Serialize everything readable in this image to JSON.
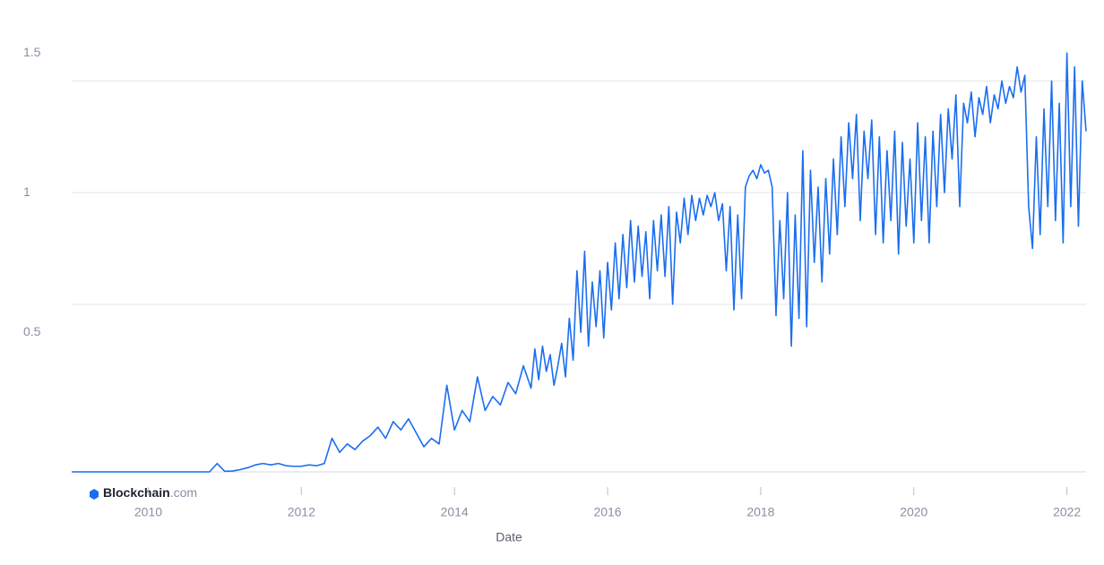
{
  "chart_data": {
    "type": "line",
    "x_label": "Date",
    "watermark": [
      "Blockchain",
      ".com"
    ],
    "xlim": [
      2009,
      2022.25
    ],
    "xticks": [
      2010,
      2012,
      2014,
      2016,
      2018,
      2020,
      2022
    ],
    "ylim": [
      0,
      1.6
    ],
    "yticks": [
      0.5,
      1,
      1.5
    ],
    "ygrid": [
      0.6,
      1,
      1.4
    ],
    "series": [
      {
        "color": "#1a6ef0",
        "x": [
          2009.0,
          2009.1,
          2009.2,
          2009.3,
          2009.4,
          2009.5,
          2009.6,
          2009.7,
          2009.8,
          2009.9,
          2010.0,
          2010.1,
          2010.2,
          2010.3,
          2010.4,
          2010.5,
          2010.6,
          2010.7,
          2010.8,
          2010.9,
          2011.0,
          2011.1,
          2011.2,
          2011.3,
          2011.4,
          2011.5,
          2011.6,
          2011.7,
          2011.8,
          2011.9,
          2012.0,
          2012.1,
          2012.2,
          2012.3,
          2012.4,
          2012.5,
          2012.6,
          2012.7,
          2012.8,
          2012.9,
          2013.0,
          2013.1,
          2013.2,
          2013.3,
          2013.4,
          2013.5,
          2013.6,
          2013.7,
          2013.8,
          2013.9,
          2014.0,
          2014.1,
          2014.2,
          2014.3,
          2014.4,
          2014.5,
          2014.6,
          2014.7,
          2014.8,
          2014.9,
          2015.0,
          2015.05,
          2015.1,
          2015.15,
          2015.2,
          2015.25,
          2015.3,
          2015.35,
          2015.4,
          2015.45,
          2015.5,
          2015.55,
          2015.6,
          2015.65,
          2015.7,
          2015.75,
          2015.8,
          2015.85,
          2015.9,
          2015.95,
          2016.0,
          2016.05,
          2016.1,
          2016.15,
          2016.2,
          2016.25,
          2016.3,
          2016.35,
          2016.4,
          2016.45,
          2016.5,
          2016.55,
          2016.6,
          2016.65,
          2016.7,
          2016.75,
          2016.8,
          2016.85,
          2016.9,
          2016.95,
          2017.0,
          2017.05,
          2017.1,
          2017.15,
          2017.2,
          2017.25,
          2017.3,
          2017.35,
          2017.4,
          2017.45,
          2017.5,
          2017.55,
          2017.6,
          2017.65,
          2017.7,
          2017.75,
          2017.8,
          2017.85,
          2017.9,
          2017.95,
          2018.0,
          2018.05,
          2018.1,
          2018.15,
          2018.2,
          2018.25,
          2018.3,
          2018.35,
          2018.4,
          2018.45,
          2018.5,
          2018.55,
          2018.6,
          2018.65,
          2018.7,
          2018.75,
          2018.8,
          2018.85,
          2018.9,
          2018.95,
          2019.0,
          2019.05,
          2019.1,
          2019.15,
          2019.2,
          2019.25,
          2019.3,
          2019.35,
          2019.4,
          2019.45,
          2019.5,
          2019.55,
          2019.6,
          2019.65,
          2019.7,
          2019.75,
          2019.8,
          2019.85,
          2019.9,
          2019.95,
          2020.0,
          2020.05,
          2020.1,
          2020.15,
          2020.2,
          2020.25,
          2020.3,
          2020.35,
          2020.4,
          2020.45,
          2020.5,
          2020.55,
          2020.6,
          2020.65,
          2020.7,
          2020.75,
          2020.8,
          2020.85,
          2020.9,
          2020.95,
          2021.0,
          2021.05,
          2021.1,
          2021.15,
          2021.2,
          2021.25,
          2021.3,
          2021.35,
          2021.4,
          2021.45,
          2021.5,
          2021.55,
          2021.6,
          2021.65,
          2021.7,
          2021.75,
          2021.8,
          2021.85,
          2021.9,
          2021.95,
          2022.0,
          2022.05,
          2022.1,
          2022.15,
          2022.2,
          2022.25
        ],
        "values": [
          0,
          0,
          0,
          0,
          0,
          0,
          0,
          0,
          0,
          0,
          0,
          0,
          0,
          0,
          0,
          0,
          0,
          0,
          0,
          0.03,
          0.002,
          0.003,
          0.008,
          0.015,
          0.025,
          0.03,
          0.025,
          0.03,
          0.022,
          0.02,
          0.02,
          0.025,
          0.022,
          0.03,
          0.12,
          0.07,
          0.1,
          0.08,
          0.11,
          0.13,
          0.16,
          0.12,
          0.18,
          0.15,
          0.19,
          0.14,
          0.09,
          0.12,
          0.1,
          0.31,
          0.15,
          0.22,
          0.18,
          0.34,
          0.22,
          0.27,
          0.24,
          0.32,
          0.28,
          0.38,
          0.3,
          0.44,
          0.33,
          0.45,
          0.36,
          0.42,
          0.31,
          0.38,
          0.46,
          0.34,
          0.55,
          0.4,
          0.72,
          0.5,
          0.79,
          0.45,
          0.68,
          0.52,
          0.72,
          0.48,
          0.75,
          0.58,
          0.82,
          0.62,
          0.85,
          0.66,
          0.9,
          0.68,
          0.88,
          0.7,
          0.86,
          0.62,
          0.9,
          0.72,
          0.92,
          0.7,
          0.95,
          0.6,
          0.93,
          0.82,
          0.98,
          0.85,
          0.99,
          0.9,
          0.98,
          0.92,
          0.99,
          0.95,
          1.0,
          0.9,
          0.96,
          0.72,
          0.95,
          0.58,
          0.92,
          0.62,
          1.02,
          1.06,
          1.08,
          1.05,
          1.1,
          1.07,
          1.08,
          1.02,
          0.56,
          0.9,
          0.62,
          1.0,
          0.45,
          0.92,
          0.55,
          1.15,
          0.52,
          1.08,
          0.75,
          1.02,
          0.68,
          1.05,
          0.78,
          1.12,
          0.85,
          1.2,
          0.95,
          1.25,
          1.05,
          1.28,
          0.9,
          1.22,
          1.05,
          1.26,
          0.85,
          1.2,
          0.82,
          1.15,
          0.9,
          1.22,
          0.78,
          1.18,
          0.88,
          1.12,
          0.82,
          1.25,
          0.9,
          1.2,
          0.82,
          1.22,
          0.95,
          1.28,
          1.0,
          1.3,
          1.12,
          1.35,
          0.95,
          1.32,
          1.25,
          1.36,
          1.2,
          1.34,
          1.28,
          1.38,
          1.25,
          1.35,
          1.3,
          1.4,
          1.32,
          1.38,
          1.34,
          1.45,
          1.36,
          1.42,
          0.95,
          0.8,
          1.2,
          0.85,
          1.3,
          0.95,
          1.4,
          0.9,
          1.32,
          0.82,
          1.5,
          0.95,
          1.45,
          0.88,
          1.4,
          1.22
        ]
      }
    ]
  }
}
